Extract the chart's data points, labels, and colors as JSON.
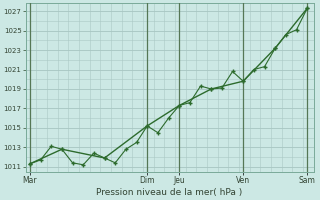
{
  "xlabel": "Pression niveau de la mer( hPa )",
  "bg_color": "#cce8e4",
  "line_color": "#2d6b2d",
  "grid_color": "#aac8c4",
  "dark_vline_color": "#557755",
  "ylim": [
    1010.5,
    1027.8
  ],
  "yticks": [
    1011,
    1013,
    1015,
    1017,
    1019,
    1021,
    1023,
    1025,
    1027
  ],
  "xtick_labels": [
    "Mar",
    "Dim",
    "Jeu",
    "Ven",
    "Sam"
  ],
  "xtick_positions": [
    0,
    5.5,
    7.0,
    10.0,
    13.0
  ],
  "vline_positions": [
    0,
    5.5,
    7.0,
    10.0,
    13.0
  ],
  "xlim": [
    -0.2,
    13.3
  ],
  "line1_x": [
    0,
    0.5,
    1.0,
    1.5,
    2.0,
    2.5,
    3.0,
    3.5,
    4.0,
    4.5,
    5.0,
    5.5,
    6.0,
    6.5,
    7.0,
    7.5,
    8.0,
    8.5,
    9.0,
    9.5,
    10.0,
    10.5,
    11.0,
    11.5,
    12.0,
    12.5,
    13.0
  ],
  "line1_y": [
    1011.3,
    1011.7,
    1013.1,
    1012.8,
    1011.4,
    1011.2,
    1012.4,
    1011.9,
    1011.4,
    1012.8,
    1013.5,
    1015.2,
    1014.5,
    1016.0,
    1017.3,
    1017.6,
    1019.3,
    1019.0,
    1019.1,
    1020.8,
    1019.8,
    1021.0,
    1021.3,
    1023.2,
    1024.6,
    1025.1,
    1027.3
  ],
  "line2_x": [
    0,
    1.5,
    3.5,
    5.5,
    7.0,
    8.5,
    10.0,
    11.5,
    13.0
  ],
  "line2_y": [
    1011.3,
    1012.8,
    1011.9,
    1015.2,
    1017.3,
    1019.0,
    1019.8,
    1023.2,
    1027.3
  ]
}
